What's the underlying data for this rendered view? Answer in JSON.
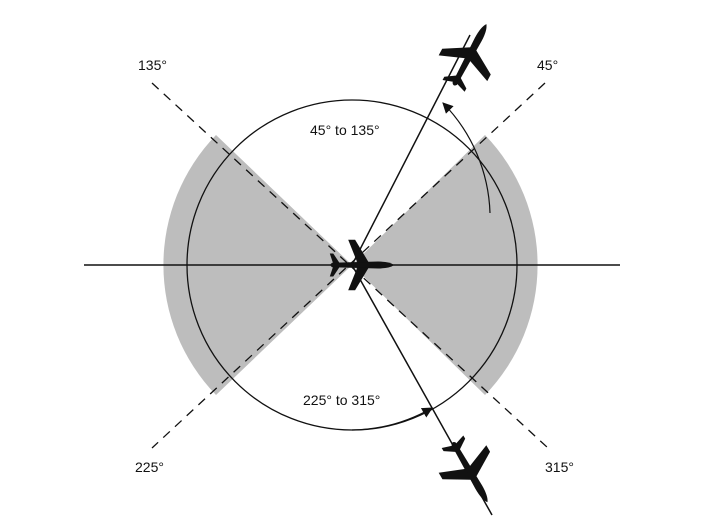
{
  "colors": {
    "shade": "#bdbdbd",
    "line": "#111111",
    "background": "#ffffff"
  },
  "diagram": {
    "ray_labels": {
      "r45": "45°",
      "r135": "135°",
      "r225": "225°",
      "r315": "315°"
    },
    "arc_labels": {
      "upper": "45° to 135°",
      "lower": "225° to 315°"
    },
    "icons": {
      "center_aircraft": "aircraft-icon",
      "upper_aircraft": "aircraft-icon",
      "lower_aircraft": "aircraft-icon"
    }
  }
}
